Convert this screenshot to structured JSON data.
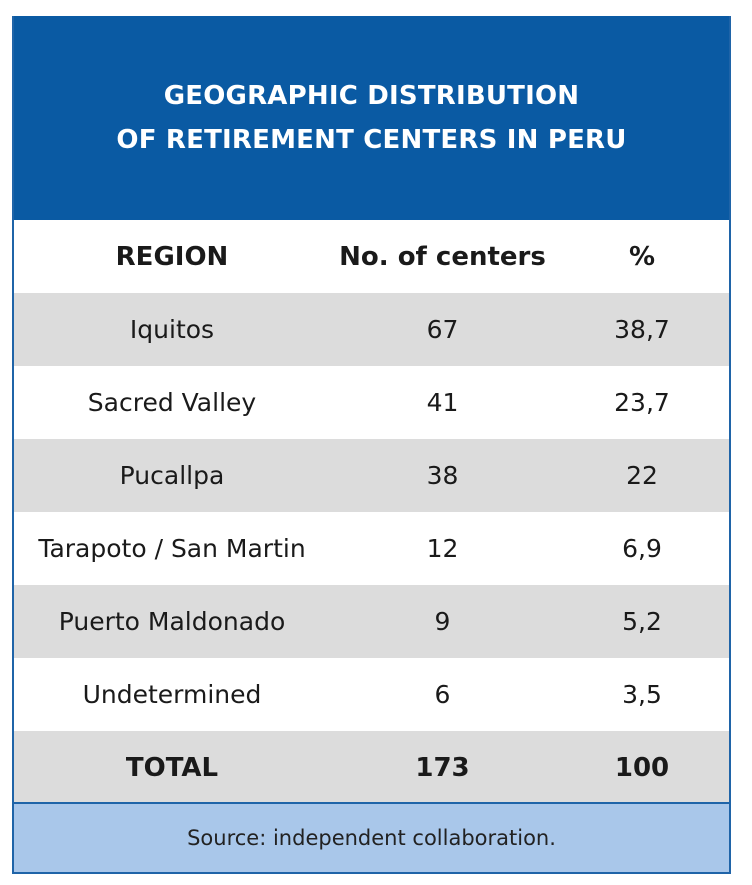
{
  "chart_data": {
    "type": "table",
    "title_lines": [
      "GEOGRAPHIC DISTRIBUTION",
      "OF RETIREMENT CENTERS IN PERU"
    ],
    "columns": [
      "REGION",
      "No. of centers",
      "%"
    ],
    "rows": [
      [
        "Iquitos",
        "67",
        "38,7"
      ],
      [
        "Sacred Valley",
        "41",
        "23,7"
      ],
      [
        "Pucallpa",
        "38",
        "22"
      ],
      [
        "Tarapoto / San Martin",
        "12",
        "6,9"
      ],
      [
        "Puerto Maldonado",
        "9",
        "5,2"
      ],
      [
        "Undetermined",
        "6",
        "3,5"
      ]
    ],
    "total": [
      "TOTAL",
      "173",
      "100"
    ],
    "source": "Source: independent collaboration."
  },
  "colors": {
    "title_background": "#0a5aa3",
    "shaded_row": "#dcdcdc",
    "source_background": "#a9c7ea",
    "border": "#1f64a8"
  }
}
